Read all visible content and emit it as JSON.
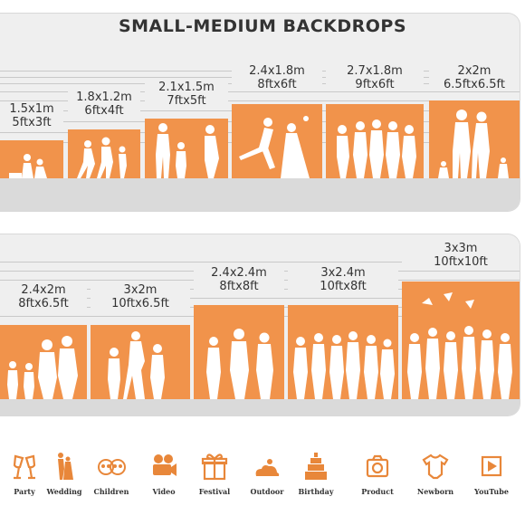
{
  "title": "SMALL-MEDIUM BACKDROPS",
  "row1": [
    {
      "metric": "1.5x1m",
      "imperial": "5ftx3ft"
    },
    {
      "metric": "1.8x1.2m",
      "imperial": "6ftx4ft"
    },
    {
      "metric": "2.1x1.5m",
      "imperial": "7ftx5ft"
    },
    {
      "metric": "2.4x1.8m",
      "imperial": "8ftx6ft"
    },
    {
      "metric": "2.7x1.8m",
      "imperial": "9ftx6ft"
    },
    {
      "metric": "2x2m",
      "imperial": "6.5ftx6.5ft"
    }
  ],
  "row2": [
    {
      "metric": "2.4x2m",
      "imperial": "8ftx6.5ft"
    },
    {
      "metric": "3x2m",
      "imperial": "10ftx6.5ft"
    },
    {
      "metric": "2.4x2.4m",
      "imperial": "8ftx8ft"
    },
    {
      "metric": "3x2.4m",
      "imperial": "10ftx8ft"
    },
    {
      "metric": "3x3m",
      "imperial": "10ftx10ft"
    }
  ],
  "icons": [
    {
      "label": "Party",
      "icon": "party-glasses-icon"
    },
    {
      "label": "Wedding",
      "icon": "wedding-couple-icon"
    },
    {
      "label": "Children",
      "icon": "children-faces-icon"
    },
    {
      "label": "Video",
      "icon": "video-camera-icon"
    },
    {
      "label": "Festival",
      "icon": "gift-box-icon"
    },
    {
      "label": "Outdoor",
      "icon": "cloud-sun-icon"
    },
    {
      "label": "Birthday",
      "icon": "birthday-cake-icon"
    },
    {
      "label": "Product",
      "icon": "camera-icon"
    },
    {
      "label": "Newborn",
      "icon": "baby-onesie-icon"
    },
    {
      "label": "YouTube",
      "icon": "play-button-icon"
    }
  ],
  "colors": {
    "backdrop": "#f1934b",
    "panel": "#efefef",
    "floor": "#dadada",
    "icon": "#e8873a"
  }
}
